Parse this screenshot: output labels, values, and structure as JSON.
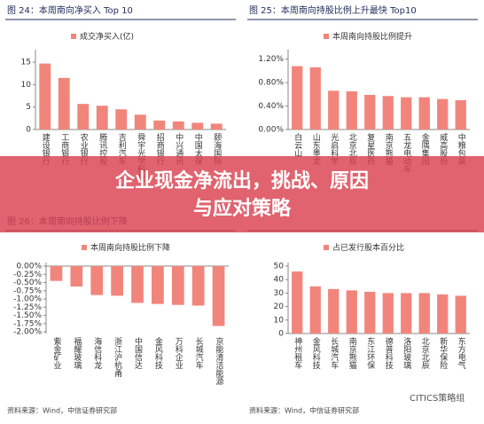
{
  "chart_data": [
    {
      "type": "bar",
      "title": "图 24：本周南向净买入 Top 10",
      "legend": "成交净买入(亿)",
      "color": "#f2857b",
      "categories": [
        "建设银行",
        "工商银行",
        "农业银行",
        "腾讯控股",
        "吉利汽车",
        "舜宇光学科技",
        "招商银行",
        "中兴通讯",
        "中国太保",
        "颐海国际"
      ],
      "values": [
        14.7,
        11.5,
        5.7,
        5.3,
        4.5,
        3.3,
        2.0,
        1.8,
        1.5,
        1.3
      ],
      "ylim": [
        0,
        17
      ],
      "yticks": [
        0,
        5,
        10,
        15
      ]
    },
    {
      "type": "bar",
      "title": "图 25：本周南向持股比例上升最快 Top10",
      "legend": "本周南向持股比例提升",
      "color": "#f2857b",
      "categories": [
        "白云山",
        "山东墨龙",
        "光启科学",
        "北京北辰",
        "复星医药",
        "南京熊猫",
        "五龙电动车",
        "金隅集团",
        "威高股份",
        "中粮包装"
      ],
      "values": [
        1.08,
        1.06,
        0.66,
        0.65,
        0.59,
        0.57,
        0.55,
        0.55,
        0.52,
        0.5
      ],
      "ylim": [
        0,
        1.3
      ],
      "yticks": [
        {
          "value": 0,
          "label": "0.00%"
        },
        {
          "value": 0.4,
          "label": "0.40%"
        },
        {
          "value": 0.8,
          "label": "0.80%"
        },
        {
          "value": 1.2,
          "label": "1.20%"
        }
      ]
    },
    {
      "type": "bar",
      "title": "图 26：本周南向持股比例下降",
      "legend": "本周南向持股比例下降",
      "color": "#f2857b",
      "source": "资料来源：Wind，中信证券研究部",
      "categories": [
        "紫金矿业",
        "福耀玻璃",
        "海信科龙",
        "浙江沪杭甬",
        "中国信达",
        "金风科技",
        "万科企业",
        "长城汽车",
        "京能清洁能源"
      ],
      "values": [
        -0.45,
        -0.62,
        -0.88,
        -0.9,
        -1.12,
        -1.15,
        -1.18,
        -1.2,
        -1.82
      ],
      "ylim": [
        -2.05,
        0
      ],
      "yticks": [
        {
          "value": 0,
          "label": "0.00%"
        },
        {
          "value": -0.25,
          "label": "-0.25%"
        },
        {
          "value": -0.5,
          "label": "-0.50%"
        },
        {
          "value": -0.75,
          "label": "-0.75%"
        },
        {
          "value": -1,
          "label": "-1.00%"
        },
        {
          "value": -1.25,
          "label": "-1.25%"
        },
        {
          "value": -1.5,
          "label": "-1.50%"
        },
        {
          "value": -1.75,
          "label": "-1.75%"
        },
        {
          "value": -2,
          "label": "-2.00%"
        }
      ]
    },
    {
      "type": "bar",
      "legend": "占已发行股本百分比",
      "color": "#f2857b",
      "source": "资料来源：Wind，中信证券研究部",
      "categories": [
        "神州租车",
        "金风科技",
        "长城汽车",
        "南京熊猫",
        "东江环保",
        "德普科技",
        "洛阳玻璃",
        "北京北辰",
        "新华保险",
        "东方电气"
      ],
      "values": [
        46,
        35,
        33,
        32,
        31,
        30,
        30,
        30,
        29,
        28
      ],
      "ylim": [
        0,
        50
      ],
      "yticks": [
        0,
        10,
        20,
        30,
        40,
        50
      ]
    }
  ],
  "banner": {
    "line1": "企业现金净流出，挑战、原因",
    "line2": "与应对策略"
  },
  "watermark": "CITICS策略组"
}
